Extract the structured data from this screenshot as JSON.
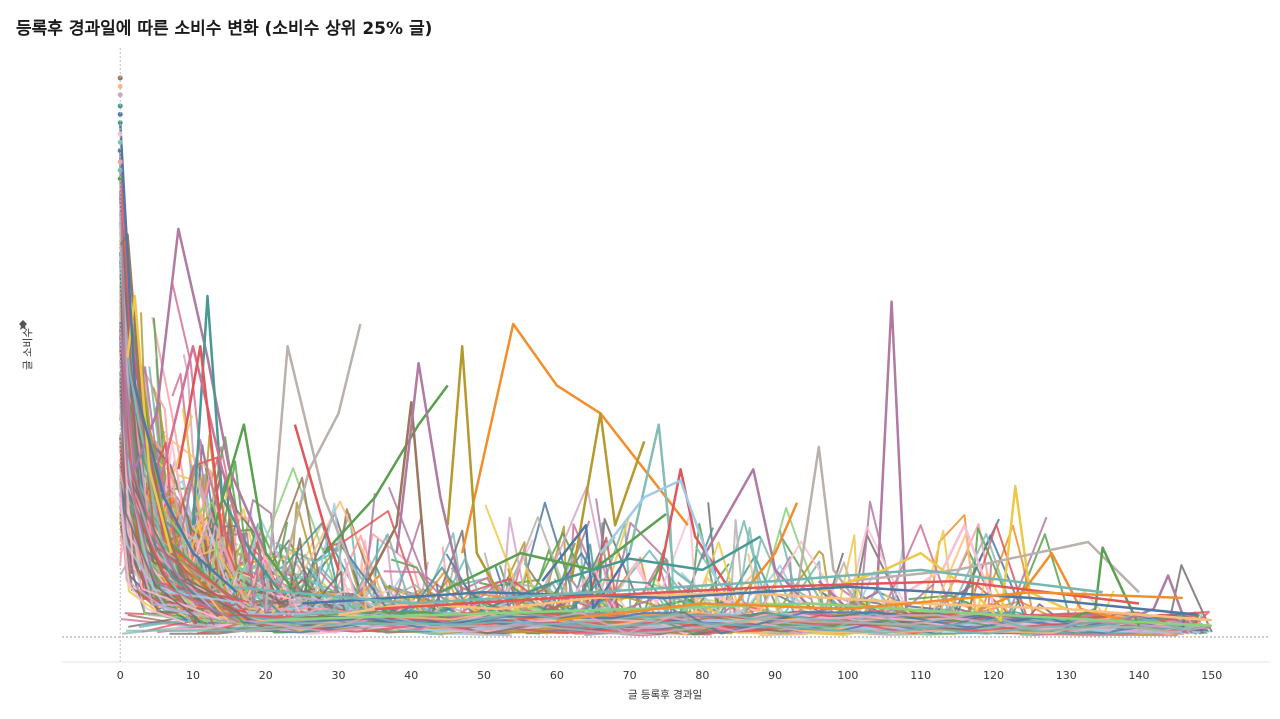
{
  "chart_data": {
    "type": "line",
    "title": "등록후 경과일에 따른 소비수 변화 (소비수 상위 25% 글)",
    "xlabel": "글 등록후 경과일",
    "ylabel": "글 소비수",
    "ylabel_icon": "pin-icon",
    "x_ticks": [
      0,
      10,
      20,
      30,
      40,
      50,
      60,
      70,
      80,
      90,
      100,
      110,
      120,
      130,
      140,
      150
    ],
    "xlim": [
      -8,
      158
    ],
    "ylim": [
      0,
      100
    ],
    "y_ticks_shown": false,
    "zero_line": "dotted",
    "grid": false,
    "legend": "none",
    "series_note": "hundreds of unlabeled series, one per article, in a Tableau palette",
    "palette": [
      "#4e79a7",
      "#f28e2b",
      "#e15759",
      "#76b7b2",
      "#59a14f",
      "#edc948",
      "#b07aa1",
      "#ff9da7",
      "#9c755f",
      "#bab0ac",
      "#a0cbe8",
      "#ffbe7d",
      "#8cd17d",
      "#b6992d",
      "#499894",
      "#86bcb6",
      "#d37295",
      "#fabfd2",
      "#79706e",
      "#d4a6c8"
    ],
    "series": [
      {
        "color": "#b07aa1",
        "x": [
          0,
          2,
          5,
          8,
          12,
          15,
          20
        ],
        "y": [
          55,
          30,
          40,
          73,
          50,
          30,
          15
        ]
      },
      {
        "color": "#f28e2b",
        "x": [
          47,
          54,
          60,
          66,
          72,
          78
        ],
        "y": [
          15,
          56,
          45,
          40,
          30,
          20
        ]
      },
      {
        "color": "#b07aa1",
        "x": [
          96,
          100,
          104,
          106,
          108
        ],
        "y": [
          10,
          5,
          8,
          60,
          5
        ]
      },
      {
        "color": "#bab0ac",
        "x": [
          22,
          26,
          30,
          33
        ],
        "y": [
          10,
          30,
          40,
          56
        ]
      },
      {
        "color": "#bab0ac",
        "x": [
          20,
          23,
          28,
          32
        ],
        "y": [
          5,
          52,
          25,
          12
        ]
      },
      {
        "color": "#499894",
        "x": [
          10,
          12,
          14,
          18,
          22
        ],
        "y": [
          20,
          61,
          25,
          15,
          8
        ]
      },
      {
        "color": "#b6992d",
        "x": [
          45,
          47,
          49,
          52
        ],
        "y": [
          20,
          52,
          15,
          8
        ]
      },
      {
        "color": "#b6992d",
        "x": [
          62,
          66,
          68,
          72
        ],
        "y": [
          10,
          40,
          20,
          35
        ]
      },
      {
        "color": "#86bcb6",
        "x": [
          70,
          74,
          76,
          80
        ],
        "y": [
          15,
          38,
          12,
          8
        ]
      },
      {
        "color": "#e15759",
        "x": [
          74,
          77,
          79,
          84
        ],
        "y": [
          10,
          30,
          18,
          8
        ]
      },
      {
        "color": "#b07aa1",
        "x": [
          80,
          87,
          90,
          95
        ],
        "y": [
          14,
          30,
          12,
          5
        ]
      },
      {
        "color": "#bab0ac",
        "x": [
          93,
          96,
          98,
          102
        ],
        "y": [
          8,
          34,
          12,
          5
        ]
      },
      {
        "color": "#f28e2b",
        "x": [
          84,
          90,
          93
        ],
        "y": [
          5,
          15,
          24
        ]
      },
      {
        "color": "#edc948",
        "x": [
          118,
          121,
          123,
          125,
          130
        ],
        "y": [
          7,
          3,
          27,
          8,
          5
        ]
      },
      {
        "color": "#bab0ac",
        "x": [
          100,
          115,
          133,
          140
        ],
        "y": [
          10,
          12,
          17,
          8
        ]
      },
      {
        "color": "#f28e2b",
        "x": [
          118,
          124,
          128,
          132,
          138
        ],
        "y": [
          5,
          8,
          15,
          5,
          3
        ]
      },
      {
        "color": "#fabfd2",
        "x": [
          108,
          113,
          116,
          120
        ],
        "y": [
          8,
          12,
          20,
          6
        ]
      },
      {
        "color": "#59a14f",
        "x": [
          130,
          134,
          135,
          140
        ],
        "y": [
          3,
          5,
          16,
          2
        ]
      },
      {
        "color": "#b07aa1",
        "x": [
          138,
          142,
          144,
          146
        ],
        "y": [
          3,
          5,
          11,
          4
        ]
      },
      {
        "color": "#59a14f",
        "x": [
          28,
          35,
          41,
          45
        ],
        "y": [
          15,
          25,
          38,
          45
        ]
      },
      {
        "color": "#9c755f",
        "x": [
          34,
          38,
          40,
          42
        ],
        "y": [
          10,
          20,
          42,
          12
        ]
      },
      {
        "color": "#b07aa1",
        "x": [
          38,
          41,
          44,
          47
        ],
        "y": [
          15,
          49,
          25,
          8
        ]
      },
      {
        "color": "#e15759",
        "x": [
          24,
          28,
          30
        ],
        "y": [
          38,
          20,
          12
        ]
      },
      {
        "color": "#4e79a7",
        "x": [
          58,
          64,
          65,
          70
        ],
        "y": [
          10,
          20,
          5,
          15
        ]
      },
      {
        "color": "#a0cbe8",
        "x": [
          66,
          72,
          77,
          82
        ],
        "y": [
          15,
          25,
          28,
          10
        ]
      },
      {
        "color": "#edc948",
        "x": [
          96,
          105,
          110,
          115
        ],
        "y": [
          8,
          12,
          15,
          10
        ]
      },
      {
        "color": "#59a14f",
        "x": [
          44,
          55,
          65,
          75
        ],
        "y": [
          8,
          15,
          12,
          22
        ]
      },
      {
        "color": "#499894",
        "x": [
          50,
          60,
          70,
          80,
          88
        ],
        "y": [
          5,
          10,
          14,
          12,
          18
        ]
      },
      {
        "color": "#ffbe7d",
        "x": [
          30,
          40,
          52,
          65,
          85,
          110,
          130,
          150
        ],
        "y": [
          4,
          6,
          5,
          7,
          8,
          6,
          5,
          3
        ]
      },
      {
        "color": "#8cd17d",
        "x": [
          20,
          45,
          70,
          95,
          120,
          150
        ],
        "y": [
          3,
          4,
          5,
          6,
          4,
          2
        ]
      },
      {
        "color": "#4e79a7",
        "x": [
          25,
          50,
          75,
          100,
          125,
          148
        ],
        "y": [
          6,
          8,
          7,
          9,
          7,
          4
        ]
      },
      {
        "color": "#e15759",
        "x": [
          35,
          60,
          90,
          115,
          140
        ],
        "y": [
          5,
          7,
          9,
          10,
          6
        ]
      },
      {
        "color": "#f28e2b",
        "x": [
          60,
          80,
          100,
          125,
          146
        ],
        "y": [
          3,
          6,
          5,
          8,
          7
        ]
      },
      {
        "color": "#76b7b2",
        "x": [
          15,
          40,
          65,
          90,
          110,
          135
        ],
        "y": [
          9,
          6,
          8,
          10,
          12,
          8
        ]
      },
      {
        "color": "#d37295",
        "x": [
          5,
          10,
          14,
          18
        ],
        "y": [
          25,
          52,
          30,
          12
        ]
      },
      {
        "color": "#9c755f",
        "x": [
          0,
          1,
          3,
          6,
          9
        ],
        "y": [
          70,
          72,
          40,
          20,
          10
        ]
      },
      {
        "color": "#edc948",
        "x": [
          1,
          2,
          4,
          7
        ],
        "y": [
          50,
          61,
          30,
          15
        ]
      },
      {
        "color": "#59a14f",
        "x": [
          13,
          17,
          20,
          24
        ],
        "y": [
          20,
          38,
          15,
          8
        ]
      },
      {
        "color": "#4e79a7",
        "x": [
          0,
          2,
          6,
          10,
          16
        ],
        "y": [
          92,
          45,
          25,
          15,
          8
        ]
      },
      {
        "color": "#e15759",
        "x": [
          8,
          11,
          14
        ],
        "y": [
          30,
          52,
          18
        ]
      }
    ],
    "seed_points": [
      {
        "color": "#9c755f",
        "y": 100
      },
      {
        "color": "#ffbe7d",
        "y": 98.5
      },
      {
        "color": "#d4a6c8",
        "y": 97
      },
      {
        "color": "#499894",
        "y": 95
      },
      {
        "color": "#4e79a7",
        "y": 93.5
      },
      {
        "color": "#499894",
        "y": 92
      },
      {
        "color": "#fabfd2",
        "y": 90
      },
      {
        "color": "#86bcb6",
        "y": 88.5
      },
      {
        "color": "#4e79a7",
        "y": 87
      },
      {
        "color": "#ff9da7",
        "y": 85
      },
      {
        "color": "#76b7b2",
        "y": 83.5
      },
      {
        "color": "#59a14f",
        "y": 82
      }
    ]
  }
}
